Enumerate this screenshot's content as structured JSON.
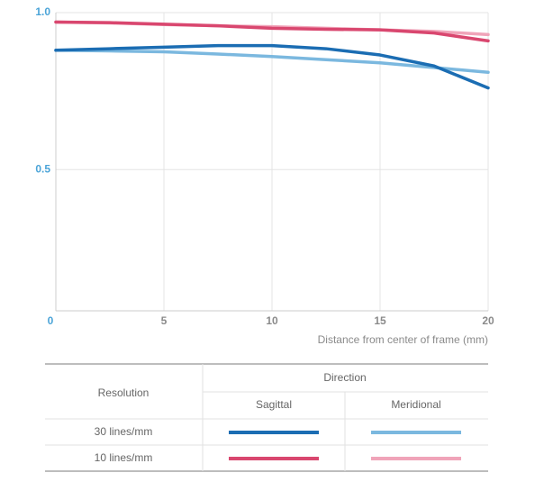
{
  "chart_data": {
    "type": "line",
    "xlabel": "Distance from center of frame (mm)",
    "x": [
      0,
      2.5,
      5,
      7.5,
      10,
      12.5,
      15,
      17.5,
      20
    ],
    "series": [
      {
        "color": "#1b6db3",
        "values": [
          0.88,
          0.885,
          0.89,
          0.895,
          0.895,
          0.885,
          0.865,
          0.83,
          0.76
        ]
      },
      {
        "color": "#7bb8df",
        "values": [
          0.88,
          0.878,
          0.875,
          0.868,
          0.86,
          0.85,
          0.84,
          0.825,
          0.81
        ]
      },
      {
        "color": "#d9476f",
        "values": [
          0.97,
          0.968,
          0.963,
          0.958,
          0.95,
          0.947,
          0.945,
          0.935,
          0.91
        ]
      },
      {
        "color": "#f0a4b9",
        "values": [
          0.97,
          0.967,
          0.962,
          0.958,
          0.955,
          0.95,
          0.945,
          0.94,
          0.93
        ]
      }
    ],
    "xlim": [
      0,
      20
    ],
    "xticks": [
      0,
      5,
      10,
      15,
      20
    ],
    "ylim": [
      0.05,
      1
    ],
    "yticks": [
      0.5,
      {
        "value": 1,
        "label": "1.0"
      }
    ],
    "grid": true,
    "legend_table": {
      "resolution_header": "Resolution",
      "direction_header": "Direction",
      "directions": [
        "Sagittal",
        "Meridional"
      ],
      "resolutions": [
        "30 lines/mm",
        "10 lines/mm"
      ]
    }
  }
}
